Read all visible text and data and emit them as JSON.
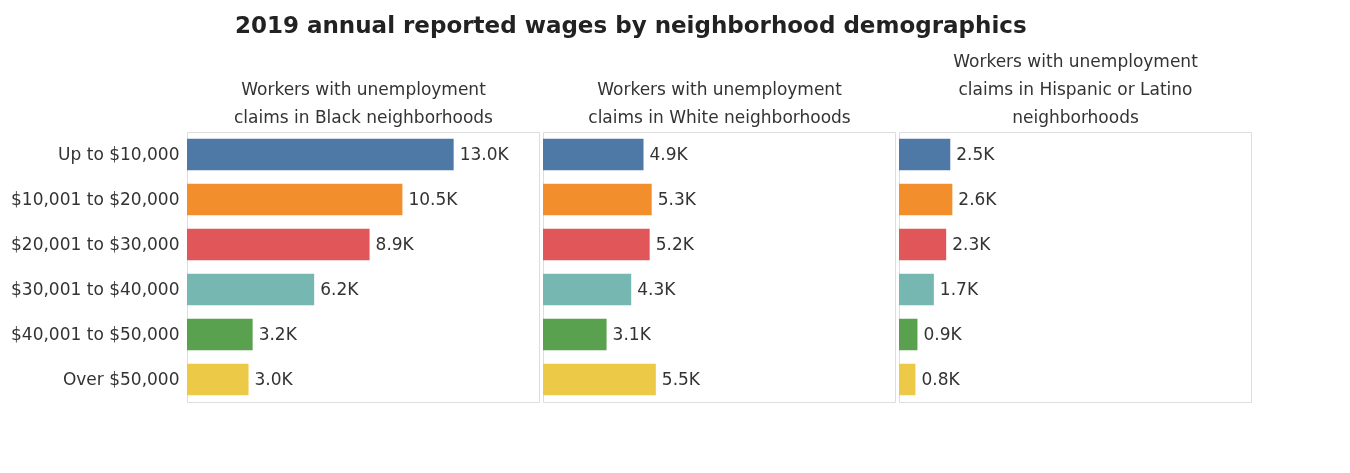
{
  "chart_data": [
    {
      "type": "bar",
      "orientation": "horizontal",
      "title": "2019 annual reported wages by neighborhood demographics",
      "xlabel": "Workers with unemployment claims in Black neighborhoods",
      "tick_labels": "y",
      "categories": [
        "Up to $10,000",
        "$10,001 to $20,000",
        "$20,001 to $30,000",
        "$30,001 to $40,000",
        "$40,001 to $50,000",
        "Over $50,000"
      ],
      "values": [
        13000,
        10500,
        8900,
        6200,
        3200,
        3000
      ],
      "value_labels": [
        "13.0K",
        "10.5K",
        "8.9K",
        "6.2K",
        "3.2K",
        "3.0K"
      ],
      "colors": [
        "#4e79a7",
        "#f28e2b",
        "#e15759",
        "#76b7b2",
        "#59a14f",
        "#edc948"
      ]
    },
    {
      "type": "bar",
      "orientation": "horizontal",
      "xlabel": "Workers with unemployment claims in White neighborhoods",
      "tick_labels": false,
      "categories": [
        null,
        null,
        null,
        null,
        null,
        null
      ],
      "values": [
        4900,
        5300,
        5200,
        4300,
        3100,
        5500
      ],
      "value_labels": [
        "4.9K",
        "5.3K",
        "5.2K",
        "4.3K",
        "3.1K",
        "5.5K"
      ],
      "colors": [
        "#4e79a7",
        "#f28e2b",
        "#e15759",
        "#76b7b2",
        "#59a14f",
        "#edc948"
      ]
    },
    {
      "type": "bar",
      "orientation": "horizontal",
      "xlabel": "Workers with unemployment claims in Hispanic or Latino neighborhoods",
      "tick_labels": false,
      "categories": [
        null,
        null,
        null,
        null,
        null,
        null
      ],
      "values": [
        2500,
        2600,
        2300,
        1700,
        900,
        800
      ],
      "value_labels": [
        "2.5K",
        "2.6K",
        "2.3K",
        "1.7K",
        "0.9K",
        "0.8K"
      ],
      "colors": [
        "#4e79a7",
        "#f28e2b",
        "#e15759",
        "#76b7b2",
        "#59a14f",
        "#edc948"
      ]
    }
  ]
}
